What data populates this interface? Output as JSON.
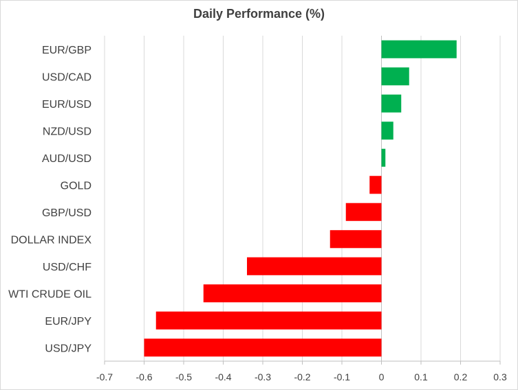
{
  "chart_data": {
    "type": "bar",
    "orientation": "horizontal",
    "title": "Daily Performance  (%)",
    "categories": [
      "EUR/GBP",
      "USD/CAD",
      "EUR/USD",
      "NZD/USD",
      "AUD/USD",
      "GOLD",
      "GBP/USD",
      "DOLLAR INDEX",
      "USD/CHF",
      "WTI CRUDE OIL",
      "EUR/JPY",
      "USD/JPY"
    ],
    "values": [
      0.19,
      0.07,
      0.05,
      0.03,
      0.01,
      -0.03,
      -0.09,
      -0.13,
      -0.34,
      -0.45,
      -0.57,
      -0.6
    ],
    "xlim": [
      -0.7,
      0.3
    ],
    "xticks": [
      -0.7,
      -0.6,
      -0.5,
      -0.4,
      -0.3,
      -0.2,
      -0.1,
      0,
      0.1,
      0.2,
      0.3
    ],
    "xtick_labels": [
      "-0.7",
      "-0.6",
      "-0.5",
      "-0.4",
      "-0.3",
      "-0.2",
      "-0.1",
      "0",
      "0.1",
      "0.2",
      "0.3"
    ],
    "grid": "vertical",
    "colors": {
      "positive": "#00b050",
      "negative": "#ff0000",
      "grid": "#d9d9d9",
      "axis": "#bfbfbf"
    }
  }
}
